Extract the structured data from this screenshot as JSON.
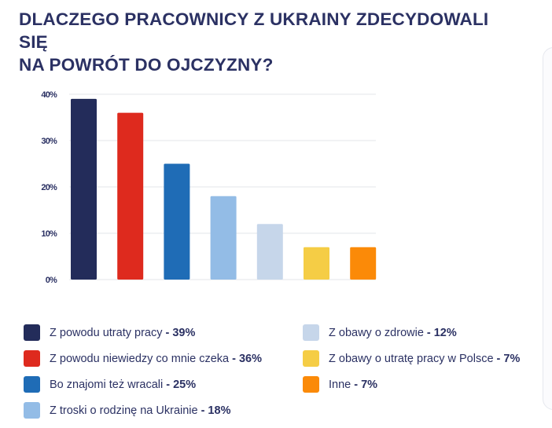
{
  "title_line1": "DLACZEGO PRACOWNICY Z UKRAINY ZDECYDOWALI SIĘ",
  "title_line2": "NA POWRÓT DO OJCZYZNY?",
  "chart_data": {
    "type": "bar",
    "title": "DLACZEGO PRACOWNICY Z UKRAINY ZDECYDOWALI SIĘ NA POWRÓT DO OJCZYZNY?",
    "xlabel": "",
    "ylabel": "",
    "ylim": [
      0,
      40
    ],
    "yticks": [
      "0%",
      "10%",
      "20%",
      "30%",
      "40%"
    ],
    "grid": true,
    "legend_position": "bottom",
    "categories": [
      "Z powodu utraty pracy",
      "Z powodu niewiedzy co mnie czeka",
      "Bo znajomi też wracali",
      "Z troski o rodzinę na Ukrainie",
      "Z obawy o zdrowie",
      "Z obawy o utratę pracy w Polsce",
      "Inne"
    ],
    "values": [
      39,
      36,
      25,
      18,
      12,
      7,
      7
    ],
    "value_labels": [
      "- 39%",
      "- 36%",
      "- 25%",
      "- 18%",
      "- 12%",
      "- 7%",
      "- 7%"
    ],
    "colors": [
      "#232c5a",
      "#de2a1e",
      "#1f6cb6",
      "#93bce6",
      "#c6d6ea",
      "#f5cd45",
      "#fb8a08"
    ]
  }
}
